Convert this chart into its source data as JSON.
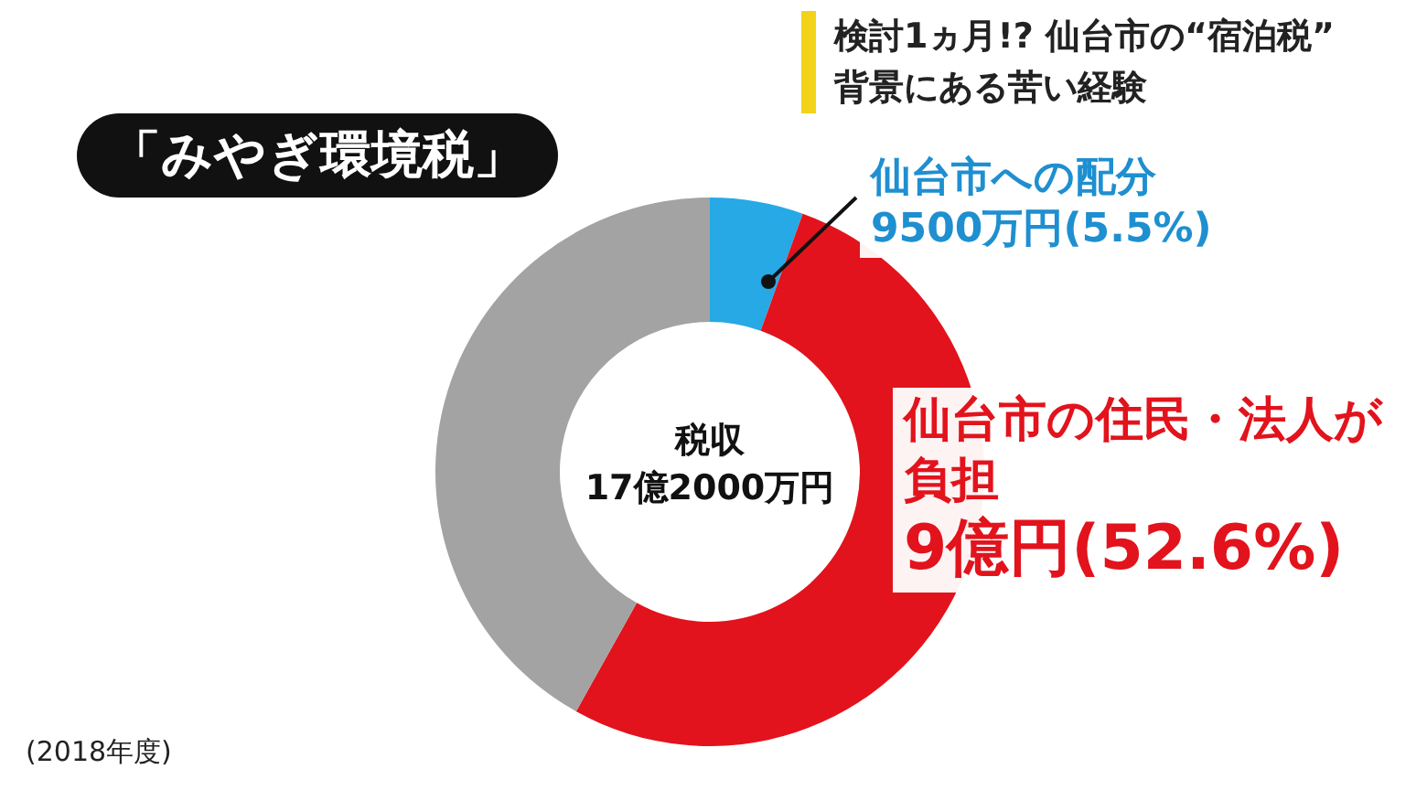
{
  "chart_data": {
    "type": "donut",
    "title": "「みやぎ環境税」",
    "subtitle": "検討1ヵ月!? 仙台市の“宿泊税”\n背景にある苦い経験",
    "categories": [
      "仙台市への配分",
      "仙台市の住民・法人が負担",
      null
    ],
    "values": [
      5.5,
      52.6,
      41.9
    ],
    "colors": [
      "#27a9e6",
      "#e2131c",
      "#a3a3a3"
    ],
    "value_labels": [
      "9500万円(5.5%)",
      "9億円(52.6%)",
      null
    ],
    "annotations": [
      "税収\n17億2000万円",
      "(2018年度)"
    ]
  }
}
